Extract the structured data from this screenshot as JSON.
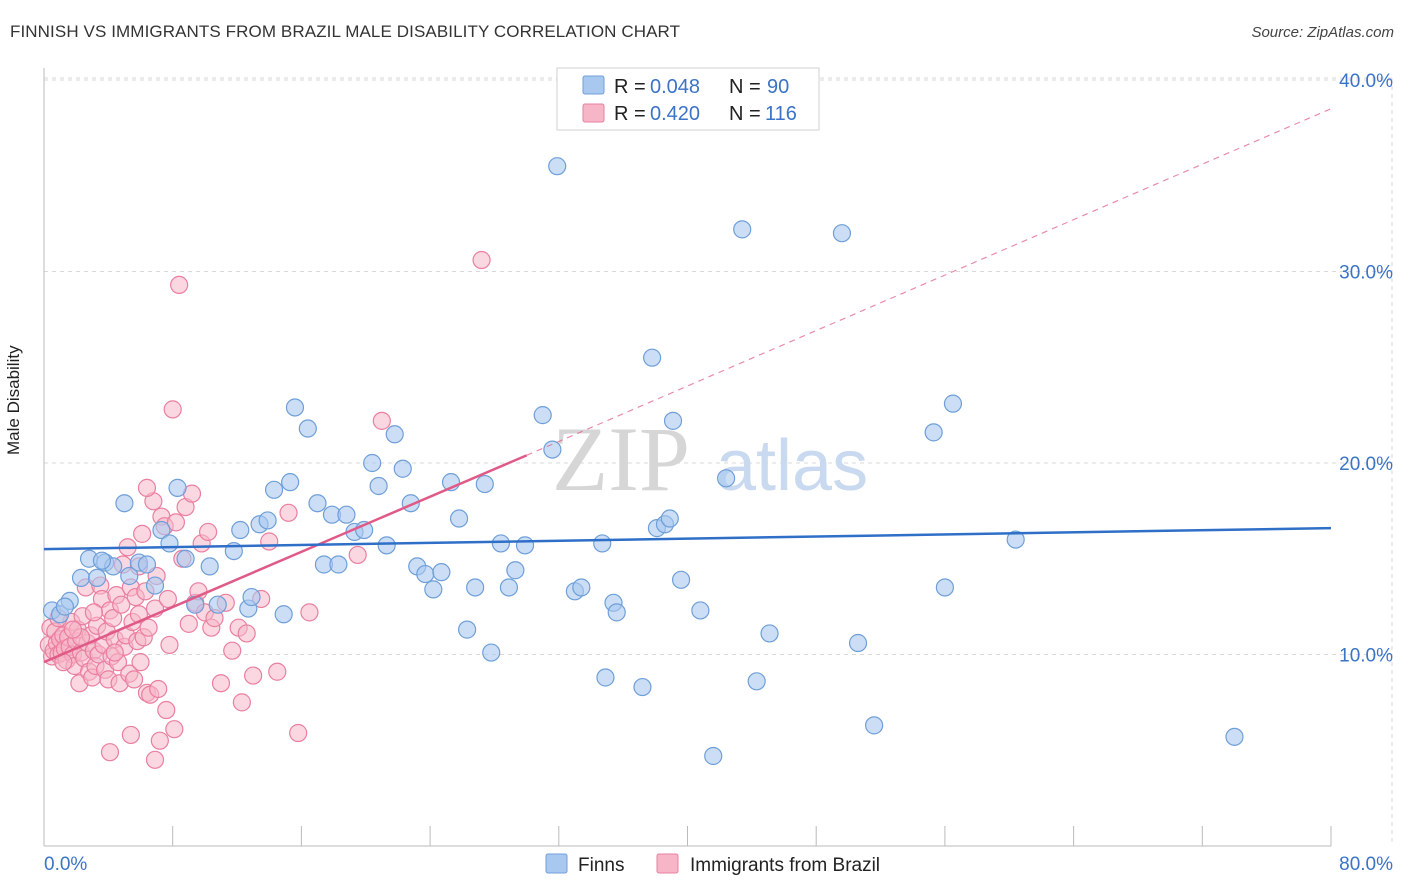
{
  "header": {
    "title": "FINNISH VS IMMIGRANTS FROM BRAZIL MALE DISABILITY CORRELATION CHART",
    "source": "Source: ZipAtlas.com"
  },
  "watermark": {
    "part1": "ZIP",
    "part2": "atlas"
  },
  "colors": {
    "finns_fill": "#a9c8ef",
    "finns_stroke": "#6f9fd8",
    "finns_line": "#2f6fc8",
    "brazil_fill": "#f6b6c8",
    "brazil_stroke": "#ea7fa0",
    "brazil_line": "#e05a88",
    "accent_text": "#3b73c6",
    "grid": "#d9d9d9"
  },
  "legend_top": {
    "rows": [
      {
        "r_label": "R = ",
        "r_value": "0.048",
        "n_label": "N = ",
        "n_value": "90"
      },
      {
        "r_label": "R = ",
        "r_value": "0.420",
        "n_label": "N = ",
        "n_value": "116"
      }
    ]
  },
  "chart_data": {
    "type": "scatter",
    "title": "FINNISH VS IMMIGRANTS FROM BRAZIL MALE DISABILITY CORRELATION CHART",
    "xlabel": "",
    "ylabel": "Male Disability",
    "xlim": [
      0,
      80
    ],
    "ylim": [
      0,
      42
    ],
    "x_tick_labels": [
      "0.0%",
      "80.0%"
    ],
    "y_ticks": [
      10,
      20,
      30,
      40
    ],
    "y_tick_labels": [
      "10.0%",
      "20.0%",
      "30.0%",
      "40.0%"
    ],
    "grid": true,
    "legend_position": "bottom-center",
    "series": [
      {
        "name": "Finns",
        "r": 0.048,
        "n": 90,
        "trend": {
          "x0": 0,
          "y0": 15.5,
          "x1": 80,
          "y1": 16.6
        },
        "points": [
          [
            0.5,
            12.3
          ],
          [
            1.0,
            12.1
          ],
          [
            1.6,
            12.8
          ],
          [
            2.3,
            14.0
          ],
          [
            2.8,
            15.0
          ],
          [
            3.3,
            14.0
          ],
          [
            3.8,
            14.8
          ],
          [
            4.3,
            14.6
          ],
          [
            5.0,
            17.9
          ],
          [
            5.3,
            14.1
          ],
          [
            5.9,
            14.8
          ],
          [
            6.4,
            14.7
          ],
          [
            6.9,
            13.6
          ],
          [
            7.3,
            16.5
          ],
          [
            7.8,
            15.8
          ],
          [
            8.3,
            18.7
          ],
          [
            8.8,
            15.0
          ],
          [
            9.4,
            12.6
          ],
          [
            10.3,
            14.6
          ],
          [
            10.8,
            12.6
          ],
          [
            11.8,
            15.4
          ],
          [
            12.2,
            16.5
          ],
          [
            12.7,
            12.4
          ],
          [
            12.9,
            13.0
          ],
          [
            13.4,
            16.8
          ],
          [
            13.9,
            17.0
          ],
          [
            14.3,
            18.6
          ],
          [
            14.9,
            12.1
          ],
          [
            15.3,
            19.0
          ],
          [
            15.6,
            22.9
          ],
          [
            16.4,
            21.8
          ],
          [
            17.0,
            17.9
          ],
          [
            17.4,
            14.7
          ],
          [
            17.9,
            17.3
          ],
          [
            18.3,
            14.7
          ],
          [
            18.8,
            17.3
          ],
          [
            19.3,
            16.4
          ],
          [
            19.9,
            16.5
          ],
          [
            20.4,
            20.0
          ],
          [
            20.8,
            18.8
          ],
          [
            21.3,
            15.7
          ],
          [
            21.8,
            21.5
          ],
          [
            22.3,
            19.7
          ],
          [
            22.8,
            17.9
          ],
          [
            23.2,
            14.6
          ],
          [
            23.7,
            14.2
          ],
          [
            24.2,
            13.4
          ],
          [
            24.7,
            14.3
          ],
          [
            25.3,
            19.0
          ],
          [
            25.8,
            17.1
          ],
          [
            26.3,
            11.3
          ],
          [
            26.8,
            13.5
          ],
          [
            27.4,
            18.9
          ],
          [
            27.8,
            10.1
          ],
          [
            28.4,
            15.8
          ],
          [
            28.9,
            13.5
          ],
          [
            29.3,
            14.4
          ],
          [
            29.9,
            15.7
          ],
          [
            31.0,
            22.5
          ],
          [
            31.6,
            20.7
          ],
          [
            31.9,
            35.5
          ],
          [
            33.0,
            13.3
          ],
          [
            33.4,
            13.5
          ],
          [
            34.7,
            15.8
          ],
          [
            34.9,
            8.8
          ],
          [
            35.4,
            12.7
          ],
          [
            35.6,
            12.2
          ],
          [
            37.2,
            8.3
          ],
          [
            37.8,
            25.5
          ],
          [
            38.1,
            16.6
          ],
          [
            38.6,
            16.8
          ],
          [
            38.9,
            17.1
          ],
          [
            39.1,
            22.2
          ],
          [
            39.6,
            13.9
          ],
          [
            40.8,
            12.3
          ],
          [
            41.6,
            4.7
          ],
          [
            42.4,
            19.2
          ],
          [
            43.4,
            32.2
          ],
          [
            44.3,
            8.6
          ],
          [
            45.1,
            11.1
          ],
          [
            49.6,
            32.0
          ],
          [
            50.6,
            10.6
          ],
          [
            51.6,
            6.3
          ],
          [
            55.3,
            21.6
          ],
          [
            56.0,
            13.5
          ],
          [
            56.5,
            23.1
          ],
          [
            60.4,
            16.0
          ],
          [
            74.0,
            5.7
          ],
          [
            1.3,
            12.5
          ],
          [
            3.6,
            14.9
          ]
        ]
      },
      {
        "name": "Immigrants from Brazil",
        "r": 0.42,
        "n": 116,
        "trend": {
          "x0": 0,
          "y0": 9.6,
          "x1": 30,
          "y1": 20.4,
          "dashed_to": {
            "x": 80,
            "y": 38.5
          }
        },
        "points": [
          [
            0.3,
            10.5
          ],
          [
            0.4,
            11.4
          ],
          [
            0.5,
            9.9
          ],
          [
            0.6,
            10.2
          ],
          [
            0.7,
            11.2
          ],
          [
            0.8,
            10.6
          ],
          [
            0.9,
            10.0
          ],
          [
            1.0,
            10.8
          ],
          [
            1.1,
            10.1
          ],
          [
            1.2,
            11.0
          ],
          [
            1.3,
            10.3
          ],
          [
            1.4,
            9.7
          ],
          [
            1.5,
            10.9
          ],
          [
            1.6,
            10.4
          ],
          [
            1.7,
            11.7
          ],
          [
            1.8,
            10.0
          ],
          [
            1.9,
            9.4
          ],
          [
            2.0,
            10.7
          ],
          [
            2.1,
            11.3
          ],
          [
            2.2,
            8.5
          ],
          [
            2.3,
            10.1
          ],
          [
            2.4,
            12.0
          ],
          [
            2.5,
            9.8
          ],
          [
            2.6,
            13.5
          ],
          [
            2.7,
            10.6
          ],
          [
            2.8,
            9.1
          ],
          [
            2.9,
            11.0
          ],
          [
            3.0,
            8.8
          ],
          [
            3.1,
            10.2
          ],
          [
            3.2,
            9.4
          ],
          [
            3.3,
            11.5
          ],
          [
            3.4,
            10.0
          ],
          [
            3.5,
            13.6
          ],
          [
            3.6,
            12.9
          ],
          [
            3.7,
            10.5
          ],
          [
            3.8,
            9.2
          ],
          [
            3.9,
            11.2
          ],
          [
            4.0,
            8.7
          ],
          [
            4.1,
            12.3
          ],
          [
            4.2,
            9.9
          ],
          [
            4.3,
            11.9
          ],
          [
            4.4,
            10.8
          ],
          [
            4.5,
            13.1
          ],
          [
            4.6,
            9.6
          ],
          [
            4.7,
            8.5
          ],
          [
            4.8,
            12.6
          ],
          [
            4.9,
            14.7
          ],
          [
            5.0,
            10.4
          ],
          [
            5.1,
            11.0
          ],
          [
            5.2,
            15.6
          ],
          [
            5.3,
            9.0
          ],
          [
            5.4,
            13.5
          ],
          [
            5.5,
            11.7
          ],
          [
            5.6,
            8.7
          ],
          [
            5.7,
            13.0
          ],
          [
            5.8,
            10.7
          ],
          [
            5.9,
            12.1
          ],
          [
            6.0,
            9.6
          ],
          [
            6.1,
            16.3
          ],
          [
            6.2,
            10.9
          ],
          [
            6.3,
            13.3
          ],
          [
            6.4,
            8.0
          ],
          [
            6.5,
            11.4
          ],
          [
            6.6,
            7.9
          ],
          [
            6.8,
            18.0
          ],
          [
            6.9,
            12.4
          ],
          [
            7.0,
            14.1
          ],
          [
            7.1,
            8.2
          ],
          [
            7.3,
            17.2
          ],
          [
            7.5,
            16.7
          ],
          [
            7.6,
            7.1
          ],
          [
            7.7,
            12.9
          ],
          [
            7.8,
            10.5
          ],
          [
            8.0,
            22.8
          ],
          [
            8.2,
            16.9
          ],
          [
            8.4,
            29.3
          ],
          [
            8.6,
            15.0
          ],
          [
            8.8,
            17.7
          ],
          [
            9.0,
            11.6
          ],
          [
            9.2,
            18.4
          ],
          [
            9.4,
            12.7
          ],
          [
            9.6,
            13.3
          ],
          [
            9.8,
            15.8
          ],
          [
            10.0,
            12.2
          ],
          [
            10.2,
            16.4
          ],
          [
            10.4,
            11.4
          ],
          [
            10.6,
            11.9
          ],
          [
            11.0,
            8.5
          ],
          [
            11.3,
            12.7
          ],
          [
            11.7,
            10.2
          ],
          [
            12.1,
            11.4
          ],
          [
            12.3,
            7.5
          ],
          [
            12.6,
            11.1
          ],
          [
            13.0,
            8.9
          ],
          [
            13.5,
            12.9
          ],
          [
            14.0,
            15.9
          ],
          [
            14.5,
            9.1
          ],
          [
            15.2,
            17.4
          ],
          [
            15.8,
            5.9
          ],
          [
            16.5,
            12.2
          ],
          [
            19.5,
            15.2
          ],
          [
            21.0,
            22.2
          ],
          [
            27.2,
            30.6
          ],
          [
            5.4,
            5.8
          ],
          [
            4.1,
            4.9
          ],
          [
            6.9,
            4.5
          ],
          [
            7.2,
            5.5
          ],
          [
            8.1,
            6.1
          ],
          [
            1.2,
            9.6
          ],
          [
            2.3,
            10.9
          ],
          [
            3.1,
            12.2
          ],
          [
            5.9,
            14.6
          ],
          [
            6.4,
            18.7
          ],
          [
            4.4,
            10.1
          ],
          [
            1.8,
            11.3
          ],
          [
            0.9,
            11.9
          ]
        ]
      }
    ]
  },
  "legend_bottom": {
    "items": [
      "Finns",
      "Immigrants from Brazil"
    ]
  }
}
